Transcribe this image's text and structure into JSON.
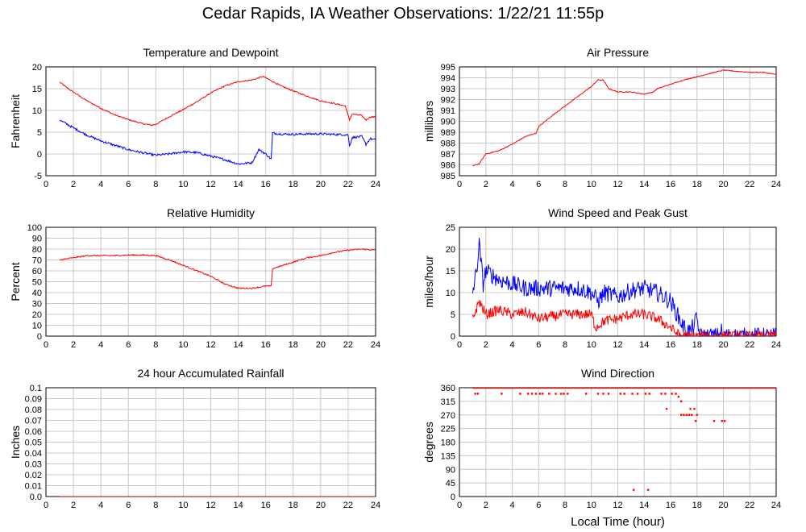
{
  "page": {
    "title": "Cedar Rapids, IA Weather Observations: 1/22/21 11:55p",
    "bottom_xlabel": "Local Time (hour)"
  },
  "colors": {
    "red": "#ff0000",
    "blue": "#0000ff",
    "grid": "#c8c8c8",
    "frame": "#000000"
  },
  "chart_data": [
    {
      "id": "temp",
      "type": "line",
      "title": "Temperature and Dewpoint",
      "xlabel": "",
      "ylabel": "Fahrenheit",
      "xlim": [
        0,
        24
      ],
      "ylim": [
        -5,
        20
      ],
      "xticks": [
        0,
        2,
        4,
        6,
        8,
        10,
        12,
        14,
        16,
        18,
        20,
        22,
        24
      ],
      "yticks": [
        -5,
        0,
        5,
        10,
        15,
        20
      ],
      "grid": true,
      "series": [
        {
          "color": "#ff0000",
          "noise": 0.15,
          "points": [
            [
              1,
              16.5
            ],
            [
              1.5,
              15.3
            ],
            [
              2,
              14.2
            ],
            [
              3,
              12.2
            ],
            [
              4,
              10.5
            ],
            [
              5,
              9.0
            ],
            [
              6,
              7.9
            ],
            [
              7,
              7.0
            ],
            [
              7.7,
              6.6
            ],
            [
              8,
              6.8
            ],
            [
              9,
              8.6
            ],
            [
              10,
              10.2
            ],
            [
              11,
              12.0
            ],
            [
              12,
              14.0
            ],
            [
              13,
              15.6
            ],
            [
              14,
              16.6
            ],
            [
              15,
              17.0
            ],
            [
              15.5,
              17.5
            ],
            [
              15.8,
              17.8
            ],
            [
              16.3,
              17.0
            ],
            [
              17,
              15.8
            ],
            [
              18,
              14.5
            ],
            [
              19,
              13.3
            ],
            [
              20,
              12.2
            ],
            [
              21,
              11.6
            ],
            [
              21.8,
              11.0
            ],
            [
              22.1,
              7.8
            ],
            [
              22.3,
              9.2
            ],
            [
              23,
              8.8
            ],
            [
              23.3,
              7.8
            ],
            [
              23.6,
              8.5
            ],
            [
              24,
              8.5
            ]
          ]
        },
        {
          "color": "#0000ff",
          "noise": 0.25,
          "points": [
            [
              1,
              7.8
            ],
            [
              2,
              6.0
            ],
            [
              3,
              4.3
            ],
            [
              4,
              3.0
            ],
            [
              5,
              2.0
            ],
            [
              6,
              1.0
            ],
            [
              7,
              0.3
            ],
            [
              8,
              -0.3
            ],
            [
              9,
              0.0
            ],
            [
              10,
              0.5
            ],
            [
              11,
              0.3
            ],
            [
              12,
              -0.5
            ],
            [
              13,
              -1.3
            ],
            [
              14,
              -2.3
            ],
            [
              15,
              -2.0
            ],
            [
              15.5,
              1.0
            ],
            [
              16,
              0.0
            ],
            [
              16.4,
              -1.2
            ],
            [
              16.5,
              4.8
            ],
            [
              17,
              4.6
            ],
            [
              18,
              4.5
            ],
            [
              19,
              4.6
            ],
            [
              20,
              4.6
            ],
            [
              21,
              4.5
            ],
            [
              22,
              4.4
            ],
            [
              22.1,
              1.8
            ],
            [
              22.3,
              3.8
            ],
            [
              23,
              4.0
            ],
            [
              23.3,
              2.2
            ],
            [
              23.6,
              3.5
            ],
            [
              24,
              3.2
            ]
          ]
        }
      ]
    },
    {
      "id": "pressure",
      "type": "line",
      "title": "Air Pressure",
      "xlabel": "",
      "ylabel": "millibars",
      "xlim": [
        0,
        24
      ],
      "ylim": [
        985,
        995
      ],
      "xticks": [
        0,
        2,
        4,
        6,
        8,
        10,
        12,
        14,
        16,
        18,
        20,
        22,
        24
      ],
      "yticks": [
        985,
        986,
        987,
        988,
        989,
        990,
        991,
        992,
        993,
        994,
        995
      ],
      "grid": true,
      "series": [
        {
          "color": "#ff0000",
          "noise": 0.04,
          "points": [
            [
              1,
              985.9
            ],
            [
              1.5,
              986.1
            ],
            [
              2,
              987.0
            ],
            [
              3,
              987.3
            ],
            [
              4,
              987.9
            ],
            [
              5,
              988.6
            ],
            [
              5.8,
              988.9
            ],
            [
              6,
              989.5
            ],
            [
              7,
              990.5
            ],
            [
              8,
              991.4
            ],
            [
              9,
              992.3
            ],
            [
              10,
              993.2
            ],
            [
              10.5,
              993.8
            ],
            [
              10.9,
              993.8
            ],
            [
              11.3,
              993.0
            ],
            [
              12,
              992.7
            ],
            [
              13,
              992.7
            ],
            [
              14,
              992.5
            ],
            [
              14.7,
              992.7
            ],
            [
              15,
              993.0
            ],
            [
              16,
              993.4
            ],
            [
              17,
              993.8
            ],
            [
              18,
              994.1
            ],
            [
              19,
              994.4
            ],
            [
              20,
              994.7
            ],
            [
              21,
              994.6
            ],
            [
              22,
              994.5
            ],
            [
              23,
              994.5
            ],
            [
              24,
              994.3
            ]
          ]
        }
      ]
    },
    {
      "id": "humidity",
      "type": "line",
      "title": "Relative Humidity",
      "xlabel": "",
      "ylabel": "Percent",
      "xlim": [
        0,
        24
      ],
      "ylim": [
        0,
        100
      ],
      "xticks": [
        0,
        2,
        4,
        6,
        8,
        10,
        12,
        14,
        16,
        18,
        20,
        22,
        24
      ],
      "yticks": [
        0,
        10,
        20,
        30,
        40,
        50,
        60,
        70,
        80,
        90,
        100
      ],
      "grid": true,
      "series": [
        {
          "color": "#ff0000",
          "noise": 0.6,
          "points": [
            [
              1,
              70
            ],
            [
              2,
              72
            ],
            [
              3,
              74
            ],
            [
              4,
              74
            ],
            [
              5,
              74
            ],
            [
              6,
              74.5
            ],
            [
              7,
              74.5
            ],
            [
              8,
              74
            ],
            [
              9,
              70
            ],
            [
              10,
              65
            ],
            [
              11,
              60
            ],
            [
              12,
              55
            ],
            [
              13,
              48
            ],
            [
              14,
              44
            ],
            [
              15,
              44
            ],
            [
              16,
              46
            ],
            [
              16.4,
              46
            ],
            [
              16.5,
              62
            ],
            [
              17,
              64
            ],
            [
              18,
              68
            ],
            [
              19,
              72
            ],
            [
              20,
              74
            ],
            [
              21,
              77
            ],
            [
              22,
              79
            ],
            [
              23,
              80
            ],
            [
              24,
              79
            ]
          ]
        }
      ]
    },
    {
      "id": "wind",
      "type": "line",
      "title": "Wind Speed and Peak Gust",
      "xlabel": "",
      "ylabel": "miles/hour",
      "xlim": [
        0,
        24
      ],
      "ylim": [
        0,
        25
      ],
      "xticks": [
        0,
        2,
        4,
        6,
        8,
        10,
        12,
        14,
        16,
        18,
        20,
        22,
        24
      ],
      "yticks": [
        0,
        5,
        10,
        15,
        20,
        25
      ],
      "grid": true,
      "series": [
        {
          "color": "#0000ff",
          "noise": 2.0,
          "points": [
            [
              1,
              10
            ],
            [
              1.3,
              15
            ],
            [
              1.5,
              21
            ],
            [
              1.8,
              12
            ],
            [
              2,
              15
            ],
            [
              3,
              13
            ],
            [
              4,
              12
            ],
            [
              5,
              11
            ],
            [
              6,
              11
            ],
            [
              7,
              11
            ],
            [
              8,
              11
            ],
            [
              9,
              11
            ],
            [
              10,
              10
            ],
            [
              10.5,
              8
            ],
            [
              11,
              10
            ],
            [
              12,
              9
            ],
            [
              13,
              10.5
            ],
            [
              14,
              11
            ],
            [
              15,
              10
            ],
            [
              16,
              8
            ],
            [
              16.5,
              5
            ],
            [
              17,
              2
            ],
            [
              17.5,
              1
            ],
            [
              18,
              4
            ],
            [
              18.2,
              0
            ],
            [
              19,
              0
            ],
            [
              19.7,
              0
            ],
            [
              19.8,
              1.5
            ],
            [
              20,
              0
            ],
            [
              24,
              0
            ]
          ]
        },
        {
          "color": "#ff0000",
          "noise": 1.2,
          "points": [
            [
              1,
              4
            ],
            [
              1.5,
              8
            ],
            [
              2,
              5
            ],
            [
              3,
              6
            ],
            [
              4,
              5
            ],
            [
              5,
              5.5
            ],
            [
              6,
              4
            ],
            [
              7,
              4.5
            ],
            [
              8,
              5
            ],
            [
              9,
              5
            ],
            [
              10,
              5
            ],
            [
              10.3,
              2
            ],
            [
              11,
              3.5
            ],
            [
              12,
              4
            ],
            [
              13,
              5
            ],
            [
              14,
              5
            ],
            [
              15,
              4
            ],
            [
              16,
              2
            ],
            [
              16.5,
              0.5
            ],
            [
              17,
              0
            ],
            [
              24,
              0
            ]
          ]
        }
      ]
    },
    {
      "id": "rain",
      "type": "line",
      "title": "24 hour Accumulated Rainfall",
      "xlabel": "",
      "ylabel": "Inches",
      "xlim": [
        0,
        24
      ],
      "ylim": [
        0,
        0.1
      ],
      "xticks": [
        0,
        2,
        4,
        6,
        8,
        10,
        12,
        14,
        16,
        18,
        20,
        22,
        24
      ],
      "yticks": [
        0.0,
        0.01,
        0.02,
        0.03,
        0.04,
        0.05,
        0.06,
        0.07,
        0.08,
        0.09,
        0.1
      ],
      "ytick_labels": [
        "0.0",
        "0.01",
        "0.02",
        "0.03",
        "0.04",
        "0.05",
        "0.06",
        "0.07",
        "0.08",
        "0.09",
        "0.1"
      ],
      "grid": true,
      "series": [
        {
          "color": "#ff0000",
          "noise": 0,
          "points": [
            [
              1,
              0
            ],
            [
              24,
              0
            ]
          ]
        }
      ]
    },
    {
      "id": "winddir",
      "type": "scatter",
      "title": "Wind Direction",
      "xlabel": "Local Time (hour)",
      "ylabel": "degrees",
      "xlim": [
        0,
        24
      ],
      "ylim": [
        0,
        360
      ],
      "xticks": [
        0,
        2,
        4,
        6,
        8,
        10,
        12,
        14,
        16,
        18,
        20,
        22,
        24
      ],
      "yticks": [
        0,
        45,
        90,
        135,
        180,
        225,
        270,
        315,
        360
      ],
      "grid": true,
      "series": [
        {
          "color": "#ff0000",
          "line360_from": 1,
          "line360_to": 24,
          "points": [
            [
              1.2,
              340
            ],
            [
              1.4,
              340
            ],
            [
              3.2,
              340
            ],
            [
              4.6,
              340
            ],
            [
              5.2,
              340
            ],
            [
              5.5,
              340
            ],
            [
              5.8,
              340
            ],
            [
              6.1,
              340
            ],
            [
              6.3,
              340
            ],
            [
              6.8,
              340
            ],
            [
              7.3,
              340
            ],
            [
              7.7,
              340
            ],
            [
              7.9,
              340
            ],
            [
              8.2,
              340
            ],
            [
              9.6,
              340
            ],
            [
              10.5,
              340
            ],
            [
              10.9,
              340
            ],
            [
              11.3,
              340
            ],
            [
              12.2,
              340
            ],
            [
              12.5,
              340
            ],
            [
              13.1,
              340
            ],
            [
              13.5,
              340
            ],
            [
              14.1,
              340
            ],
            [
              14.4,
              340
            ],
            [
              15.3,
              340
            ],
            [
              15.6,
              340
            ],
            [
              16.1,
              340
            ],
            [
              16.4,
              340
            ],
            [
              16.6,
              330
            ],
            [
              16.8,
              315
            ],
            [
              15.7,
              290
            ],
            [
              16.8,
              270
            ],
            [
              17.0,
              270
            ],
            [
              17.2,
              270
            ],
            [
              17.4,
              270
            ],
            [
              17.6,
              270
            ],
            [
              18.0,
              270
            ],
            [
              17.5,
              290
            ],
            [
              17.8,
              290
            ],
            [
              17.9,
              250
            ],
            [
              19.3,
              250
            ],
            [
              19.9,
              250
            ],
            [
              20.1,
              250
            ],
            [
              13.2,
              22
            ],
            [
              14.3,
              22
            ]
          ]
        }
      ]
    }
  ]
}
